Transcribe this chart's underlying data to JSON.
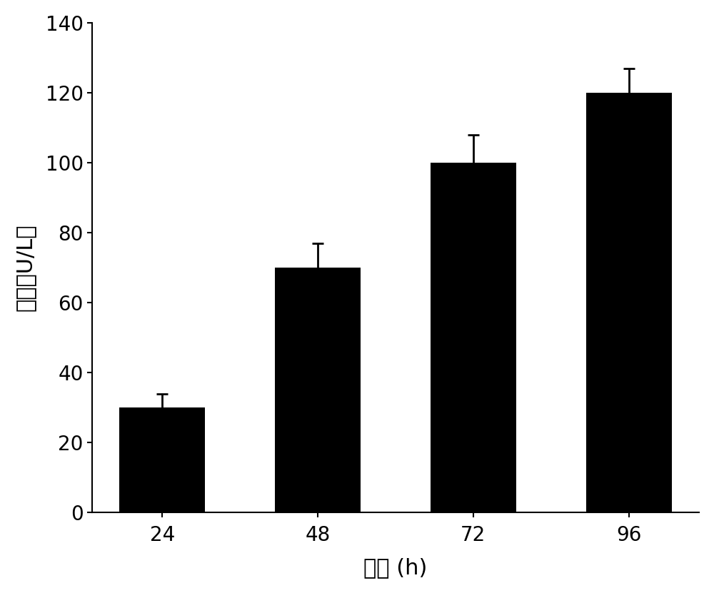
{
  "categories": [
    "24",
    "48",
    "72",
    "96"
  ],
  "values": [
    30,
    70,
    100,
    120
  ],
  "errors": [
    4,
    7,
    8,
    7
  ],
  "bar_color": "#000000",
  "bar_width": 0.55,
  "xlabel": "时间 (h)",
  "ylabel": "酵活（U/L）",
  "ylim": [
    0,
    140
  ],
  "yticks": [
    0,
    20,
    40,
    60,
    80,
    100,
    120,
    140
  ],
  "xlabel_fontsize": 22,
  "ylabel_fontsize": 22,
  "tick_fontsize": 20,
  "error_capsize": 6,
  "error_linewidth": 2,
  "background_color": "#ffffff"
}
